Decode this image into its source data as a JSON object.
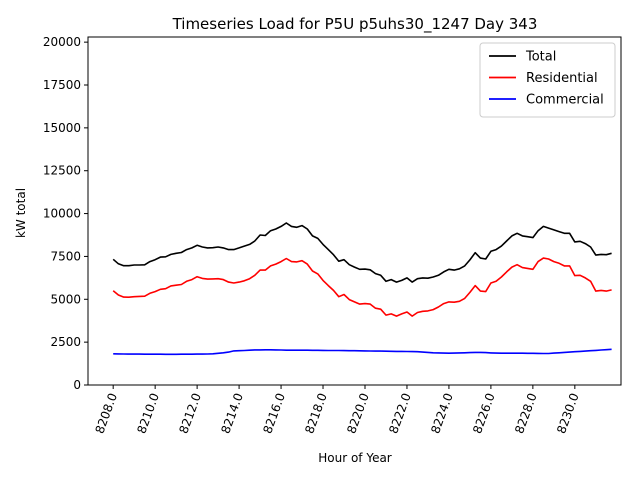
{
  "chart_data": {
    "type": "line",
    "title": "Timeseries Load for P5U p5uhs30_1247  Day 343",
    "xlabel": "Hour of Year",
    "ylabel": "kW total",
    "xlim": [
      8206.8,
      8232.2
    ],
    "ylim": [
      0,
      20300
    ],
    "xticks": [
      8208,
      8210,
      8212,
      8214,
      8216,
      8218,
      8220,
      8222,
      8224,
      8226,
      8228,
      8230
    ],
    "xtick_labels": [
      "8208.0",
      "8210.0",
      "8212.0",
      "8214.0",
      "8216.0",
      "8218.0",
      "8220.0",
      "8222.0",
      "8224.0",
      "8226.0",
      "8228.0",
      "8230.0"
    ],
    "yticks": [
      0,
      2500,
      5000,
      7500,
      10000,
      12500,
      15000,
      17500,
      20000
    ],
    "ytick_labels": [
      "0",
      "2500",
      "5000",
      "7500",
      "10000",
      "12500",
      "15000",
      "17500",
      "20000"
    ],
    "legend_position": "top-right",
    "x": [
      8208.0,
      8208.25,
      8208.5,
      8208.75,
      8209.0,
      8209.25,
      8209.5,
      8209.75,
      8210.0,
      8210.25,
      8210.5,
      8210.75,
      8211.0,
      8211.25,
      8211.5,
      8211.75,
      8212.0,
      8212.25,
      8212.5,
      8212.75,
      8213.0,
      8213.25,
      8213.5,
      8213.75,
      8214.0,
      8214.25,
      8214.5,
      8214.75,
      8215.0,
      8215.25,
      8215.5,
      8215.75,
      8216.0,
      8216.25,
      8216.5,
      8216.75,
      8217.0,
      8217.25,
      8217.5,
      8217.75,
      8218.0,
      8218.25,
      8218.5,
      8218.75,
      8219.0,
      8219.25,
      8219.5,
      8219.75,
      8220.0,
      8220.25,
      8220.5,
      8220.75,
      8221.0,
      8221.25,
      8221.5,
      8221.75,
      8222.0,
      8222.25,
      8222.5,
      8222.75,
      8223.0,
      8223.25,
      8223.5,
      8223.75,
      8224.0,
      8224.25,
      8224.5,
      8224.75,
      8225.0,
      8225.25,
      8225.5,
      8225.75,
      8226.0,
      8226.25,
      8226.5,
      8226.75,
      8227.0,
      8227.25,
      8227.5,
      8227.75,
      8228.0,
      8228.25,
      8228.5,
      8228.75,
      8229.0,
      8229.25,
      8229.5,
      8229.75,
      8230.0,
      8230.25,
      8230.5,
      8230.75,
      8231.0,
      8231.25,
      8231.5,
      8231.75
    ],
    "series": [
      {
        "name": "Total",
        "color": "#000000",
        "values": [
          7330,
          7070,
          6960,
          6960,
          7000,
          7000,
          7010,
          7200,
          7310,
          7460,
          7480,
          7620,
          7680,
          7730,
          7900,
          8000,
          8150,
          8050,
          8000,
          8010,
          8050,
          8000,
          7900,
          7900,
          8000,
          8100,
          8200,
          8400,
          8750,
          8720,
          9000,
          9100,
          9250,
          9450,
          9250,
          9200,
          9300,
          9100,
          8700,
          8550,
          8200,
          7900,
          7600,
          7220,
          7310,
          7020,
          6880,
          6750,
          6760,
          6720,
          6500,
          6400,
          6050,
          6150,
          6000,
          6100,
          6250,
          6000,
          6200,
          6250,
          6230,
          6300,
          6400,
          6600,
          6750,
          6700,
          6780,
          6950,
          7300,
          7720,
          7400,
          7350,
          7800,
          7900,
          8100,
          8400,
          8700,
          8850,
          8700,
          8650,
          8600,
          9000,
          9250,
          9150,
          9050,
          8950,
          8850,
          8850,
          8350,
          8380,
          8250,
          8050,
          7580,
          7620,
          7600,
          7680
        ]
      },
      {
        "name": "Residential",
        "color": "#ff0000",
        "values": [
          5500,
          5250,
          5130,
          5120,
          5150,
          5170,
          5180,
          5350,
          5450,
          5580,
          5620,
          5780,
          5820,
          5860,
          6050,
          6150,
          6320,
          6220,
          6180,
          6190,
          6200,
          6150,
          6000,
          5950,
          6000,
          6080,
          6200,
          6400,
          6700,
          6700,
          6950,
          7050,
          7200,
          7380,
          7200,
          7180,
          7250,
          7050,
          6650,
          6480,
          6100,
          5800,
          5520,
          5150,
          5280,
          4980,
          4850,
          4720,
          4750,
          4720,
          4480,
          4420,
          4080,
          4150,
          4020,
          4150,
          4260,
          4020,
          4230,
          4300,
          4320,
          4400,
          4550,
          4750,
          4850,
          4830,
          4880,
          5050,
          5400,
          5800,
          5480,
          5450,
          5950,
          6050,
          6300,
          6600,
          6880,
          7020,
          6850,
          6800,
          6750,
          7200,
          7400,
          7350,
          7200,
          7100,
          6950,
          6950,
          6380,
          6400,
          6250,
          6050,
          5480,
          5520,
          5480,
          5550
        ]
      },
      {
        "name": "Commercial",
        "color": "#0000ff",
        "values": [
          1820,
          1815,
          1810,
          1805,
          1800,
          1800,
          1795,
          1795,
          1795,
          1795,
          1790,
          1790,
          1790,
          1795,
          1795,
          1795,
          1800,
          1800,
          1810,
          1820,
          1850,
          1880,
          1920,
          1990,
          2000,
          2010,
          2030,
          2045,
          2050,
          2055,
          2055,
          2050,
          2040,
          2030,
          2030,
          2030,
          2030,
          2030,
          2025,
          2025,
          2020,
          2015,
          2010,
          2010,
          2005,
          2000,
          2000,
          1995,
          1990,
          1985,
          1980,
          1975,
          1970,
          1965,
          1960,
          1960,
          1955,
          1950,
          1945,
          1920,
          1900,
          1880,
          1870,
          1860,
          1855,
          1860,
          1870,
          1880,
          1890,
          1900,
          1900,
          1890,
          1870,
          1860,
          1855,
          1855,
          1855,
          1855,
          1855,
          1850,
          1850,
          1845,
          1840,
          1840,
          1860,
          1880,
          1900,
          1920,
          1940,
          1960,
          1980,
          2000,
          2020,
          2040,
          2060,
          2080
        ]
      }
    ]
  }
}
